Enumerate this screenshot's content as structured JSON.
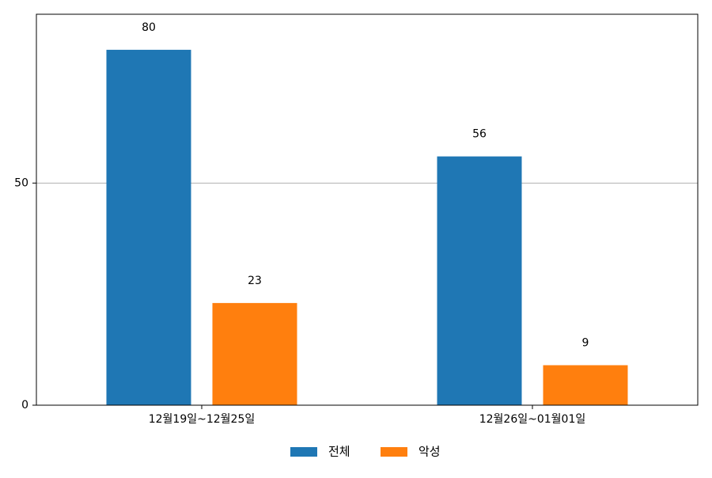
{
  "chart_data": {
    "type": "bar",
    "categories": [
      "12월19일~12월25일",
      "12월26일~01월01일"
    ],
    "series": [
      {
        "name": "전체",
        "values": [
          80,
          56
        ],
        "color": "#1f77b4"
      },
      {
        "name": "악성",
        "values": [
          23,
          9
        ],
        "color": "#ff7f0e"
      }
    ],
    "yticks": [
      0,
      50
    ],
    "ytick_labels": [
      "0",
      "50"
    ],
    "ylim": [
      0,
      88
    ],
    "grid": "horizontal",
    "legend_position": "bottom-center",
    "data_labels": true
  }
}
